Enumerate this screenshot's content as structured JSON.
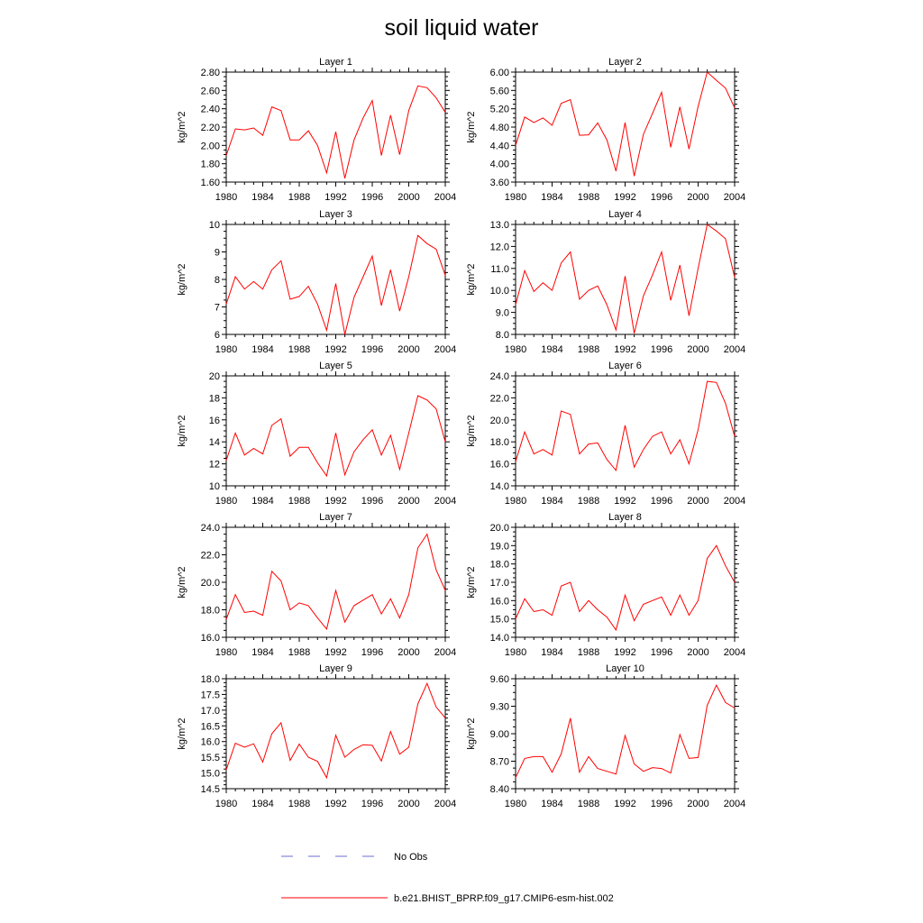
{
  "figure": {
    "title": "soil liquid water",
    "legend": [
      {
        "label": "No Obs",
        "color": "#6b6bd6",
        "style": "dashed"
      },
      {
        "label": "b.e21.BHIST_BPRP.f09_g17.CMIP6-esm-hist.002",
        "color": "#ff0000",
        "style": "solid"
      }
    ]
  },
  "chart_data": [
    {
      "type": "line",
      "title": "Layer 1",
      "ylabel": "kg/m^2",
      "xlim": [
        1980,
        2004
      ],
      "ylim": [
        1.6,
        2.8
      ],
      "xticks": [
        "1980",
        "1984",
        "1988",
        "1992",
        "1996",
        "2000",
        "2004"
      ],
      "yticks": [
        "1.60",
        "1.80",
        "2.00",
        "2.20",
        "2.40",
        "2.60",
        "2.80"
      ],
      "x": [
        1980,
        1981,
        1982,
        1983,
        1984,
        1985,
        1986,
        1987,
        1988,
        1989,
        1990,
        1991,
        1992,
        1993,
        1994,
        1995,
        1996,
        1997,
        1998,
        1999,
        2000,
        2001,
        2002,
        2003,
        2004
      ],
      "series": [
        {
          "name": "b.e21.BHIST_BPRP.f09_g17.CMIP6-esm-hist.002",
          "color": "#ff0000",
          "values": [
            1.89,
            2.18,
            2.17,
            2.19,
            2.11,
            2.42,
            2.38,
            2.06,
            2.06,
            2.16,
            2.0,
            1.7,
            2.15,
            1.64,
            2.06,
            2.3,
            2.49,
            1.89,
            2.33,
            1.9,
            2.38,
            2.65,
            2.63,
            2.52,
            2.36
          ]
        }
      ]
    },
    {
      "type": "line",
      "title": "Layer 2",
      "ylabel": "kg/m^2",
      "xlim": [
        1980,
        2004
      ],
      "ylim": [
        3.6,
        6.0
      ],
      "xticks": [
        "1980",
        "1984",
        "1988",
        "1992",
        "1996",
        "2000",
        "2004"
      ],
      "yticks": [
        "3.60",
        "4.00",
        "4.40",
        "4.80",
        "5.20",
        "5.60",
        "6.00"
      ],
      "x": [
        1980,
        1981,
        1982,
        1983,
        1984,
        1985,
        1986,
        1987,
        1988,
        1989,
        1990,
        1991,
        1992,
        1993,
        1994,
        1995,
        1996,
        1997,
        1998,
        1999,
        2000,
        2001,
        2002,
        2003,
        2004
      ],
      "series": [
        {
          "name": "b.e21.BHIST_BPRP.f09_g17.CMIP6-esm-hist.002",
          "color": "#ff0000",
          "values": [
            4.4,
            5.02,
            4.9,
            5.0,
            4.84,
            5.32,
            5.4,
            4.62,
            4.63,
            4.89,
            4.52,
            3.84,
            4.9,
            3.73,
            4.64,
            5.1,
            5.56,
            4.36,
            5.24,
            4.32,
            5.25,
            6.0,
            5.82,
            5.65,
            5.22
          ]
        }
      ]
    },
    {
      "type": "line",
      "title": "Layer 3",
      "ylabel": "kg/m^2",
      "xlim": [
        1980,
        2004
      ],
      "ylim": [
        6,
        10
      ],
      "xticks": [
        "1980",
        "1984",
        "1988",
        "1992",
        "1996",
        "2000",
        "2004"
      ],
      "yticks": [
        "6",
        "7",
        "8",
        "9",
        "10"
      ],
      "x": [
        1980,
        1981,
        1982,
        1983,
        1984,
        1985,
        1986,
        1987,
        1988,
        1989,
        1990,
        1991,
        1992,
        1993,
        1994,
        1995,
        1996,
        1997,
        1998,
        1999,
        2000,
        2001,
        2002,
        2003,
        2004
      ],
      "series": [
        {
          "name": "b.e21.BHIST_BPRP.f09_g17.CMIP6-esm-hist.002",
          "color": "#ff0000",
          "values": [
            7.1,
            8.1,
            7.65,
            7.92,
            7.65,
            8.35,
            8.68,
            7.28,
            7.38,
            7.75,
            7.1,
            6.15,
            7.85,
            6.0,
            7.35,
            8.1,
            8.85,
            7.05,
            8.35,
            6.85,
            8.1,
            9.6,
            9.3,
            9.1,
            8.15
          ]
        }
      ]
    },
    {
      "type": "line",
      "title": "Layer 4",
      "ylabel": "kg/m^2",
      "xlim": [
        1980,
        2004
      ],
      "ylim": [
        8,
        13
      ],
      "xticks": [
        "1980",
        "1984",
        "1988",
        "1992",
        "1996",
        "2000",
        "2004"
      ],
      "yticks": [
        "8.0",
        "9.0",
        "10.0",
        "11.0",
        "12.0",
        "13.0"
      ],
      "x": [
        1980,
        1981,
        1982,
        1983,
        1984,
        1985,
        1986,
        1987,
        1988,
        1989,
        1990,
        1991,
        1992,
        1993,
        1994,
        1995,
        1996,
        1997,
        1998,
        1999,
        2000,
        2001,
        2002,
        2003,
        2004
      ],
      "series": [
        {
          "name": "b.e21.BHIST_BPRP.f09_g17.CMIP6-esm-hist.002",
          "color": "#ff0000",
          "values": [
            9.35,
            10.9,
            9.95,
            10.35,
            10.0,
            11.25,
            11.75,
            9.6,
            10.0,
            10.2,
            9.35,
            8.2,
            10.65,
            8.05,
            9.75,
            10.7,
            11.75,
            9.55,
            11.15,
            8.85,
            11.0,
            13.0,
            12.7,
            12.35,
            10.6
          ]
        }
      ]
    },
    {
      "type": "line",
      "title": "Layer 5",
      "ylabel": "kg/m^2",
      "xlim": [
        1980,
        2004
      ],
      "ylim": [
        10,
        20
      ],
      "xticks": [
        "1980",
        "1984",
        "1988",
        "1992",
        "1996",
        "2000",
        "2004"
      ],
      "yticks": [
        "10",
        "12",
        "14",
        "16",
        "18",
        "20"
      ],
      "x": [
        1980,
        1981,
        1982,
        1983,
        1984,
        1985,
        1986,
        1987,
        1988,
        1989,
        1990,
        1991,
        1992,
        1993,
        1994,
        1995,
        1996,
        1997,
        1998,
        1999,
        2000,
        2001,
        2002,
        2003,
        2004
      ],
      "series": [
        {
          "name": "b.e21.BHIST_BPRP.f09_g17.CMIP6-esm-hist.002",
          "color": "#ff0000",
          "values": [
            12.3,
            14.8,
            12.8,
            13.4,
            12.9,
            15.5,
            16.1,
            12.7,
            13.5,
            13.5,
            12.1,
            10.9,
            14.8,
            11.0,
            13.1,
            14.2,
            15.1,
            12.8,
            14.6,
            11.5,
            14.8,
            18.2,
            17.8,
            17.0,
            14.0
          ]
        }
      ]
    },
    {
      "type": "line",
      "title": "Layer 6",
      "ylabel": "kg/m^2",
      "xlim": [
        1980,
        2004
      ],
      "ylim": [
        14,
        24
      ],
      "xticks": [
        "1980",
        "1984",
        "1988",
        "1992",
        "1996",
        "2000",
        "2004"
      ],
      "yticks": [
        "14.0",
        "16.0",
        "18.0",
        "20.0",
        "22.0",
        "24.0"
      ],
      "x": [
        1980,
        1981,
        1982,
        1983,
        1984,
        1985,
        1986,
        1987,
        1988,
        1989,
        1990,
        1991,
        1992,
        1993,
        1994,
        1995,
        1996,
        1997,
        1998,
        1999,
        2000,
        2001,
        2002,
        2003,
        2004
      ],
      "series": [
        {
          "name": "b.e21.BHIST_BPRP.f09_g17.CMIP6-esm-hist.002",
          "color": "#ff0000",
          "values": [
            16.2,
            18.9,
            16.9,
            17.3,
            16.8,
            20.8,
            20.5,
            16.9,
            17.8,
            17.9,
            16.4,
            15.4,
            19.5,
            15.7,
            17.3,
            18.5,
            18.9,
            16.9,
            18.2,
            16.0,
            19.1,
            23.5,
            23.4,
            21.5,
            18.5
          ]
        }
      ]
    },
    {
      "type": "line",
      "title": "Layer 7",
      "ylabel": "kg/m^2",
      "xlim": [
        1980,
        2004
      ],
      "ylim": [
        16,
        24
      ],
      "xticks": [
        "1980",
        "1984",
        "1988",
        "1992",
        "1996",
        "2000",
        "2004"
      ],
      "yticks": [
        "16.0",
        "18.0",
        "20.0",
        "22.0",
        "24.0"
      ],
      "x": [
        1980,
        1981,
        1982,
        1983,
        1984,
        1985,
        1986,
        1987,
        1988,
        1989,
        1990,
        1991,
        1992,
        1993,
        1994,
        1995,
        1996,
        1997,
        1998,
        1999,
        2000,
        2001,
        2002,
        2003,
        2004
      ],
      "series": [
        {
          "name": "b.e21.BHIST_BPRP.f09_g17.CMIP6-esm-hist.002",
          "color": "#ff0000",
          "values": [
            17.3,
            19.1,
            17.8,
            17.9,
            17.6,
            20.8,
            20.1,
            18.0,
            18.5,
            18.3,
            17.4,
            16.6,
            19.4,
            17.1,
            18.3,
            18.7,
            19.1,
            17.7,
            18.8,
            17.4,
            19.1,
            22.5,
            23.5,
            20.9,
            19.4
          ]
        }
      ]
    },
    {
      "type": "line",
      "title": "Layer 8",
      "ylabel": "kg/m^2",
      "xlim": [
        1980,
        2004
      ],
      "ylim": [
        14,
        20
      ],
      "xticks": [
        "1980",
        "1984",
        "1988",
        "1992",
        "1996",
        "2000",
        "2004"
      ],
      "yticks": [
        "14.0",
        "15.0",
        "16.0",
        "17.0",
        "18.0",
        "19.0",
        "20.0"
      ],
      "x": [
        1980,
        1981,
        1982,
        1983,
        1984,
        1985,
        1986,
        1987,
        1988,
        1989,
        1990,
        1991,
        1992,
        1993,
        1994,
        1995,
        1996,
        1997,
        1998,
        1999,
        2000,
        2001,
        2002,
        2003,
        2004
      ],
      "series": [
        {
          "name": "b.e21.BHIST_BPRP.f09_g17.CMIP6-esm-hist.002",
          "color": "#ff0000",
          "values": [
            15.0,
            16.1,
            15.4,
            15.5,
            15.2,
            16.8,
            17.0,
            15.4,
            16.0,
            15.5,
            15.1,
            14.4,
            16.3,
            14.9,
            15.8,
            16.0,
            16.2,
            15.2,
            16.3,
            15.2,
            16.0,
            18.3,
            19.0,
            17.9,
            17.0
          ]
        }
      ]
    },
    {
      "type": "line",
      "title": "Layer 9",
      "ylabel": "kg/m^2",
      "xlim": [
        1980,
        2004
      ],
      "ylim": [
        14.5,
        18
      ],
      "xticks": [
        "1980",
        "1984",
        "1988",
        "1992",
        "1996",
        "2000",
        "2004"
      ],
      "yticks": [
        "14.5",
        "15.0",
        "15.5",
        "16.0",
        "16.5",
        "17.0",
        "17.5",
        "18.0"
      ],
      "x": [
        1980,
        1981,
        1982,
        1983,
        1984,
        1985,
        1986,
        1987,
        1988,
        1989,
        1990,
        1991,
        1992,
        1993,
        1994,
        1995,
        1996,
        1997,
        1998,
        1999,
        2000,
        2001,
        2002,
        2003,
        2004
      ],
      "series": [
        {
          "name": "b.e21.BHIST_BPRP.f09_g17.CMIP6-esm-hist.002",
          "color": "#ff0000",
          "values": [
            15.1,
            15.95,
            15.82,
            15.93,
            15.35,
            16.25,
            16.6,
            15.4,
            15.92,
            15.5,
            15.37,
            14.85,
            16.2,
            15.5,
            15.75,
            15.9,
            15.88,
            15.38,
            16.32,
            15.6,
            15.82,
            17.2,
            17.85,
            17.1,
            16.75
          ]
        }
      ]
    },
    {
      "type": "line",
      "title": "Layer 10",
      "ylabel": "kg/m^2",
      "xlim": [
        1980,
        2004
      ],
      "ylim": [
        8.4,
        9.6
      ],
      "xticks": [
        "1980",
        "1984",
        "1988",
        "1992",
        "1996",
        "2000",
        "2004"
      ],
      "yticks": [
        "8.40",
        "8.70",
        "9.00",
        "9.30",
        "9.60"
      ],
      "x": [
        1980,
        1981,
        1982,
        1983,
        1984,
        1985,
        1986,
        1987,
        1988,
        1989,
        1990,
        1991,
        1992,
        1993,
        1994,
        1995,
        1996,
        1997,
        1998,
        1999,
        2000,
        2001,
        2002,
        2003,
        2004
      ],
      "series": [
        {
          "name": "b.e21.BHIST_BPRP.f09_g17.CMIP6-esm-hist.002",
          "color": "#ff0000",
          "values": [
            8.52,
            8.73,
            8.75,
            8.75,
            8.58,
            8.78,
            9.17,
            8.58,
            8.75,
            8.62,
            8.59,
            8.56,
            8.98,
            8.67,
            8.59,
            8.63,
            8.62,
            8.57,
            8.99,
            8.73,
            8.74,
            9.31,
            9.53,
            9.34,
            9.28
          ]
        }
      ]
    }
  ]
}
